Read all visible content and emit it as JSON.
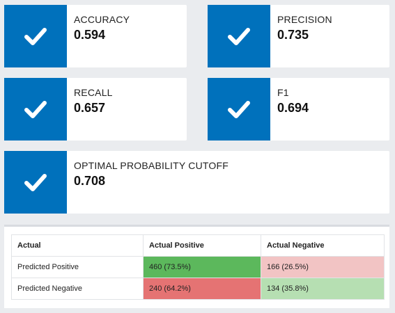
{
  "colors": {
    "accent": "#0071bc",
    "card_bg": "#ffffff",
    "page_bg": "#eaecef",
    "true_positive": "#5cb85c",
    "false_negative": "#f2c4c4",
    "false_positive": "#e57373",
    "true_negative": "#b6dfb2"
  },
  "metrics": [
    {
      "label": "ACCURACY",
      "value": "0.594",
      "icon": "checkmark-icon"
    },
    {
      "label": "PRECISION",
      "value": "0.735",
      "icon": "checkmark-icon"
    },
    {
      "label": "RECALL",
      "value": "0.657",
      "icon": "checkmark-icon"
    },
    {
      "label": "F1",
      "value": "0.694",
      "icon": "checkmark-icon"
    },
    {
      "label": "OPTIMAL PROBABILITY CUTOFF",
      "value": "0.708",
      "icon": "checkmark-icon"
    }
  ],
  "confusion_matrix": {
    "headers": [
      "Actual",
      "Actual Positive",
      "Actual Negative"
    ],
    "rows": [
      {
        "label": "Predicted Positive",
        "cells": [
          "460 (73.5%)",
          "166 (26.5%)"
        ]
      },
      {
        "label": "Predicted Negative",
        "cells": [
          "240 (64.2%)",
          "134 (35.8%)"
        ]
      }
    ]
  }
}
